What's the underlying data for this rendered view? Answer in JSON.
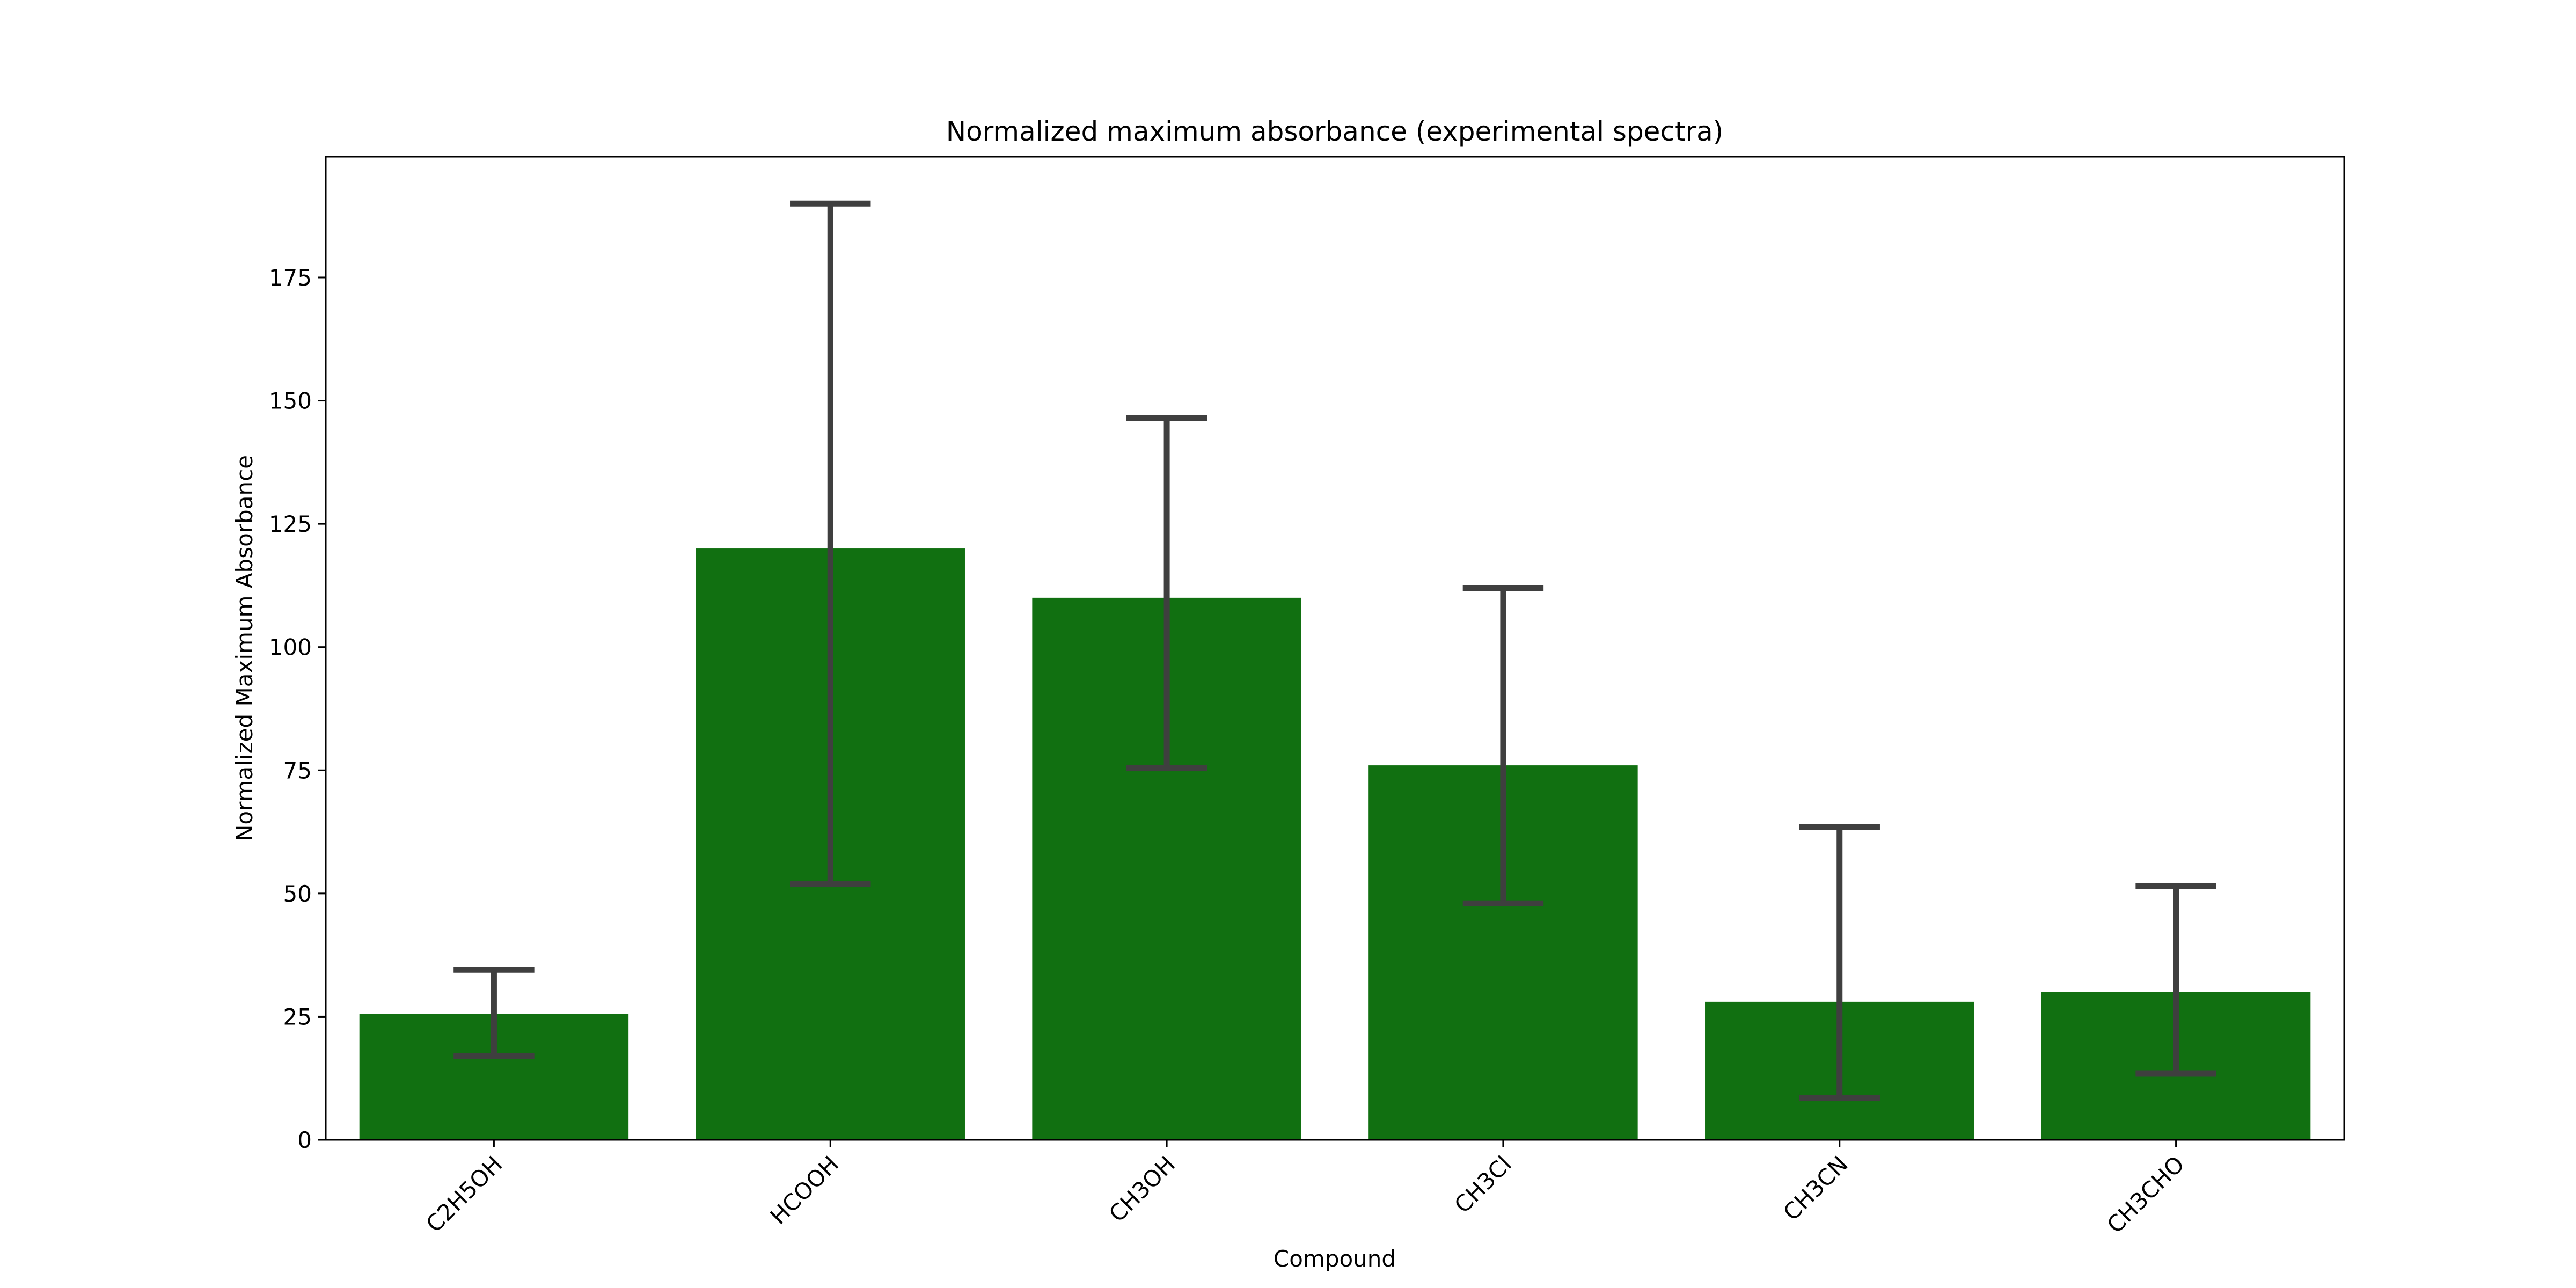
{
  "chart_data": {
    "type": "bar",
    "title": "Normalized maximum absorbance (experimental spectra)",
    "xlabel": "Compound",
    "ylabel": "Normalized Maximum Absorbance",
    "categories": [
      "C2H5OH",
      "HCOOH",
      "CH3OH",
      "CH3Cl",
      "CH3CN",
      "CH3CHO"
    ],
    "values": [
      25.5,
      120,
      110,
      76,
      28,
      30
    ],
    "error_low": [
      17,
      52,
      75.5,
      48,
      8.5,
      13.5
    ],
    "error_high": [
      34.5,
      190,
      146.5,
      112,
      63.5,
      51.5
    ],
    "yticks": [
      0,
      25,
      50,
      75,
      100,
      125,
      150,
      175
    ],
    "ylim": [
      0,
      199.5
    ],
    "grid": false,
    "bar_color": "#117011",
    "error_color": "#3f3f3f"
  }
}
